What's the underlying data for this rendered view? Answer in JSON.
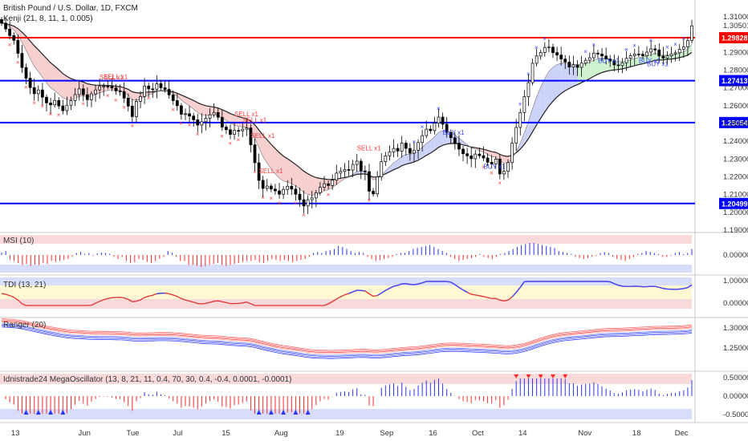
{
  "header": {
    "title": "British Pound / U.S. Dollar, 1D, FXCM",
    "indicator": "Kenji (21, 8, 11, 1, 0.005)"
  },
  "colors": {
    "bull": "#000000",
    "bear": "#000000",
    "support_line": "#0000ff",
    "resist_line": "#ff0000",
    "sell_marker": "#ff3b3b",
    "buy_marker": "#3b46ff",
    "cloud_bear": "#f7caca",
    "cloud_bull": "#c8cef7",
    "cloud_green": "#c9efc9"
  },
  "chart_data": [
    {
      "type": "candlestick",
      "panel": "main",
      "ylim": [
        1.19,
        1.315
      ],
      "y_ticks": [
        "1.31000",
        "1.30501",
        "1.29000",
        "1.28000",
        "1.27000",
        "1.26000",
        "1.25000",
        "1.24000",
        "1.23000",
        "1.22000",
        "1.21000",
        "1.20000",
        "1.19000"
      ],
      "x_ticks": [
        "13",
        "Jun",
        "Tue",
        "Jul",
        "15",
        "Aug",
        "19",
        "Sep",
        "16",
        "Oct",
        "14",
        "Nov",
        "18",
        "Dec"
      ],
      "hlines": [
        {
          "value": 1.29828,
          "label": "1.29828",
          "color": "#ff0000"
        },
        {
          "value": 1.27413,
          "label": "1.27413",
          "color": "#0000ff"
        },
        {
          "value": 1.25054,
          "label": "1.25054",
          "color": "#0000ff"
        },
        {
          "value": 1.20499,
          "label": "1.20499",
          "color": "#0000ff"
        }
      ],
      "closes": [
        1.3065,
        1.3032,
        1.2995,
        1.2968,
        1.2895,
        1.2815,
        1.2755,
        1.2702,
        1.2668,
        1.2689,
        1.2648,
        1.2616,
        1.2605,
        1.263,
        1.2599,
        1.2572,
        1.2603,
        1.2629,
        1.2663,
        1.2695,
        1.2662,
        1.2634,
        1.2667,
        1.2689,
        1.2708,
        1.271,
        1.2708,
        1.27,
        1.2683,
        1.268,
        1.2643,
        1.2598,
        1.2539,
        1.2625,
        1.2652,
        1.2711,
        1.2695,
        1.2693,
        1.2724,
        1.2701,
        1.2692,
        1.2661,
        1.2629,
        1.26,
        1.2552,
        1.2555,
        1.2542,
        1.2521,
        1.2491,
        1.251,
        1.253,
        1.2549,
        1.2562,
        1.2535,
        1.248,
        1.2465,
        1.2439,
        1.2461,
        1.2459,
        1.2468,
        1.2475,
        1.238,
        1.2279,
        1.218,
        1.2135,
        1.2148,
        1.2131,
        1.2121,
        1.2102,
        1.2129,
        1.2147,
        1.2131,
        1.2102,
        1.2071,
        1.2036,
        1.2071,
        1.2081,
        1.2111,
        1.2141,
        1.2161,
        1.2151,
        1.2181,
        1.2221,
        1.2231,
        1.2241,
        1.2238,
        1.227,
        1.2288,
        1.2233,
        1.2229,
        1.2119,
        1.2104,
        1.22,
        1.2285,
        1.2318,
        1.234,
        1.236,
        1.2345,
        1.239,
        1.236,
        1.2333,
        1.235,
        1.2393,
        1.2432,
        1.2468,
        1.246,
        1.2502,
        1.2536,
        1.2496,
        1.2451,
        1.242,
        1.239,
        1.2356,
        1.233,
        1.2318,
        1.2302,
        1.2328,
        1.2319,
        1.2306,
        1.2282,
        1.2272,
        1.23,
        1.2216,
        1.2231,
        1.228,
        1.2389,
        1.2478,
        1.2562,
        1.2651,
        1.273,
        1.2839,
        1.288,
        1.29,
        1.2928,
        1.293,
        1.2899,
        1.2885,
        1.2863,
        1.2846,
        1.2818,
        1.283,
        1.2816,
        1.284,
        1.2856,
        1.287,
        1.2896,
        1.2891,
        1.288,
        1.2863,
        1.2852,
        1.283,
        1.2826,
        1.2842,
        1.2867,
        1.2881,
        1.2891,
        1.289,
        1.2881,
        1.2902,
        1.292,
        1.2914,
        1.288,
        1.2868,
        1.2881,
        1.2892,
        1.2898,
        1.2918,
        1.2932,
        1.2967,
        1.305
      ]
    },
    {
      "type": "histogram",
      "panel": "MSI (10)",
      "y_ticks": [
        "0.00000"
      ],
      "values": [
        0.12,
        0.2,
        -0.25,
        -0.3,
        -0.4,
        -0.5,
        -0.45,
        -0.55,
        -0.48,
        -0.5,
        -0.4,
        -0.45,
        -0.3,
        -0.35,
        -0.3,
        -0.25,
        -0.2,
        -0.1,
        0.1,
        0.15,
        0.05,
        0.1,
        -0.05,
        0.08,
        0.12,
        0.1,
        0.06,
        -0.1,
        -0.2,
        -0.1,
        -0.3,
        -0.4,
        -0.35,
        -0.2,
        -0.25,
        -0.35,
        -0.4,
        -0.3,
        -0.2,
        -0.1,
        0.2,
        0.1,
        -0.1,
        -0.3,
        -0.3,
        -0.5,
        -0.5,
        -0.55,
        -0.6,
        -0.55,
        -0.5,
        -0.45,
        -0.4,
        -0.5,
        -0.55,
        -0.5,
        -0.45,
        -0.4,
        -0.35,
        -0.3,
        -0.3,
        -0.25,
        -0.35,
        -0.4,
        -0.3,
        -0.2,
        -0.25,
        -0.3,
        -0.25,
        -0.3,
        -0.35,
        -0.3,
        -0.25,
        -0.2,
        -0.1,
        0.1,
        0.15,
        0.1,
        0.2,
        0.25,
        0.3,
        0.45,
        0.4,
        0.3,
        0.2,
        0.1,
        0.15,
        0.1,
        -0.1,
        -0.2,
        -0.3,
        -0.25,
        -0.2,
        -0.15,
        -0.1,
        0.05,
        0.1,
        0.1,
        0.2,
        0.3,
        0.35,
        0.4,
        0.45,
        0.5,
        0.4,
        0.3,
        0.2,
        0.1,
        -0.1,
        -0.2,
        -0.3,
        -0.25,
        -0.2,
        -0.15,
        -0.1,
        0.05,
        -0.1,
        -0.15,
        -0.2,
        -0.1,
        0.05,
        0.1,
        0.2,
        0.3,
        0.4,
        0.5,
        0.55,
        0.6,
        0.6,
        0.55,
        0.5,
        0.45,
        0.4,
        0.35,
        0.2,
        0.15,
        0.1,
        0.05,
        -0.1,
        -0.15,
        -0.2,
        -0.15,
        -0.1,
        -0.05,
        0.1,
        0.15,
        0.1,
        -0.1,
        -0.2,
        -0.25,
        -0.3,
        -0.2,
        -0.1,
        0.05,
        0.1,
        0.2,
        0.15,
        0.1,
        0.05,
        -0.1,
        -0.1,
        -0.05,
        0.1,
        0.15,
        0.05,
        0.1,
        0.3
      ]
    },
    {
      "type": "line",
      "panel": "TDI (13, 21)",
      "y_ticks": [
        "1.00000",
        "0.00000"
      ],
      "trend": "step"
    },
    {
      "type": "line",
      "panel": "Ranger (20)",
      "y_ticks": [
        "1.30000",
        "1.25000"
      ]
    },
    {
      "type": "histogram",
      "panel": "Idnistrade24 MegaOscillator (13, 8, 21, 11, 0.4, 70, 30, 0.4, -0.4, 0.0001, -0.0001)",
      "y_ticks": [
        "0.50000",
        "0.00000",
        "-0.50000"
      ]
    }
  ],
  "labels": {
    "sell": [
      "SELL x1",
      "SELL x1",
      "SELL x1",
      "SELL x1",
      "SELL x1",
      "SELL x1",
      "SELL x1"
    ],
    "buy": [
      "BUY x1",
      "BUY x1",
      "BUY x1",
      "BUY x1",
      "BUY x1",
      "BUY x2"
    ]
  },
  "panels": {
    "msi_title": "MSI (10)",
    "tdi_title": "TDI (13, 21)",
    "ranger_title": "Ranger (20)",
    "mega_title": "Idnistrade24 MegaOscillator (13, 8, 21, 11, 0.4, 70, 30, 0.4, -0.4, 0.0001, -0.0001)"
  }
}
